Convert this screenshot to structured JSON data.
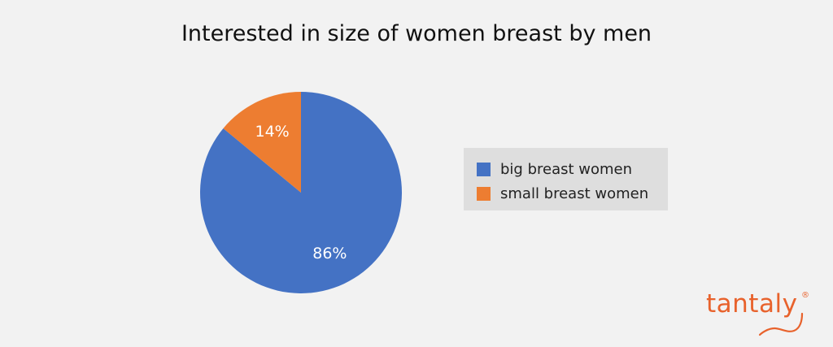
{
  "chart_data": {
    "type": "pie",
    "title": "Interested in size of women breast by men",
    "slices": [
      {
        "label": "big breast women",
        "value": 86,
        "display": "86%",
        "color": "#4472c4"
      },
      {
        "label": "small breast women",
        "value": 14,
        "display": "14%",
        "color": "#ed7d31"
      }
    ],
    "start_angle_deg": 0,
    "direction": "clockwise",
    "data_label_color": "#ffffff",
    "legend": {
      "position": "right",
      "items": [
        "big breast women",
        "small breast women"
      ]
    }
  },
  "brand": {
    "name": "tantaly",
    "mark": "®",
    "color": "#e8622c"
  }
}
